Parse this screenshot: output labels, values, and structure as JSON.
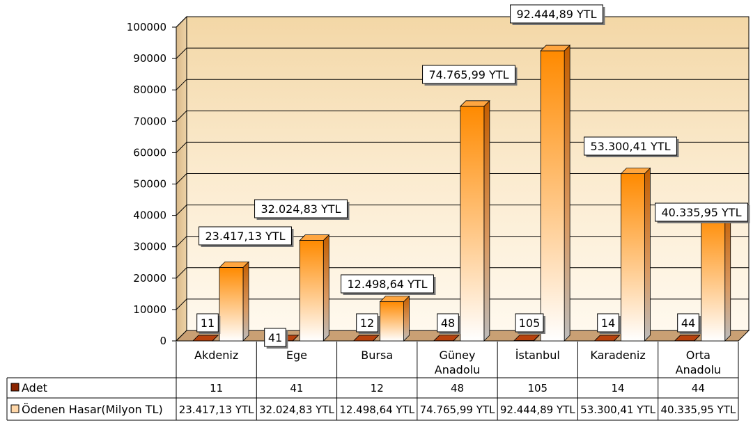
{
  "chart_data": {
    "type": "bar",
    "categories": [
      [
        "Akdeniz"
      ],
      [
        "Ege"
      ],
      [
        "Bursa"
      ],
      [
        "Güney",
        "Anadolu"
      ],
      [
        "İstanbul"
      ],
      [
        "Karadeniz"
      ],
      [
        "Orta",
        "Anadolu"
      ]
    ],
    "series": [
      {
        "name": "Adet",
        "values": [
          11,
          41,
          12,
          48,
          105,
          14,
          44
        ]
      },
      {
        "name": "Ödenen Hasar(Milyon TL)",
        "values": [
          23417.13,
          32024.83,
          12498.64,
          74765.99,
          92444.89,
          53300.41,
          40335.95
        ]
      }
    ],
    "data_labels": {
      "Adet": [
        "11",
        "41",
        "12",
        "48",
        "105",
        "14",
        "44"
      ],
      "Ödenen Hasar(Milyon TL)": [
        "23.417,13 YTL",
        "32.024,83 YTL",
        "12.498,64 YTL",
        "74.765,99 YTL",
        "92.444,89 YTL",
        "53.300,41 YTL",
        "40.335,95 YTL"
      ]
    },
    "yticks": [
      "0",
      "10000",
      "20000",
      "30000",
      "40000",
      "50000",
      "60000",
      "70000",
      "80000",
      "90000",
      "100000"
    ],
    "ylim": [
      0,
      100000
    ],
    "grid": true,
    "legend": "data-table",
    "colors": {
      "adet": "#8b2500",
      "hasar_top": "#ff8c00",
      "hasar_bottom": "#ffffff",
      "wall": "#f5deb3"
    }
  }
}
